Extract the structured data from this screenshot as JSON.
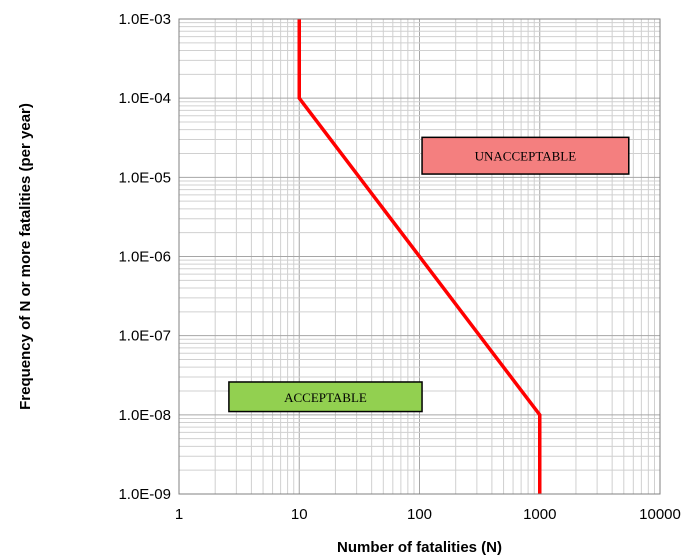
{
  "chart_data": {
    "type": "line",
    "title": "",
    "xlabel": "Number of fatalities (N)",
    "ylabel": "Frequency of N or more fatalities  (per  year)",
    "x_scale": "log",
    "y_scale": "log",
    "xlim": [
      1,
      10000
    ],
    "ylim": [
      1e-09,
      0.001
    ],
    "x_ticks": [
      1,
      10,
      100,
      1000,
      10000
    ],
    "x_tick_labels": [
      "1",
      "10",
      "100",
      "1000",
      "10000"
    ],
    "y_ticks": [
      1e-09,
      1e-08,
      1e-07,
      1e-06,
      1e-05,
      0.0001,
      0.001
    ],
    "y_tick_labels": [
      "1.0E-09",
      "1.0E-08",
      "1.0E-07",
      "1.0E-06",
      "1.0E-05",
      "1.0E-04",
      "1.0E-03"
    ],
    "grid": true,
    "series": [
      {
        "color": "#ff0000",
        "x": [
          10,
          10,
          1000,
          1000
        ],
        "y": [
          0.001,
          0.0001,
          1e-08,
          1e-09
        ]
      }
    ],
    "annotations": [
      {
        "text": "UNACCEPTABLE",
        "fill": "#f47f7f",
        "x_range": [
          105,
          5500
        ],
        "y_range": [
          1.1e-05,
          3.2e-05
        ]
      },
      {
        "text": "ACCEPTABLE",
        "fill": "#92d050",
        "x_range": [
          2.6,
          105
        ],
        "y_range": [
          1.1e-08,
          2.6e-08
        ]
      }
    ]
  }
}
